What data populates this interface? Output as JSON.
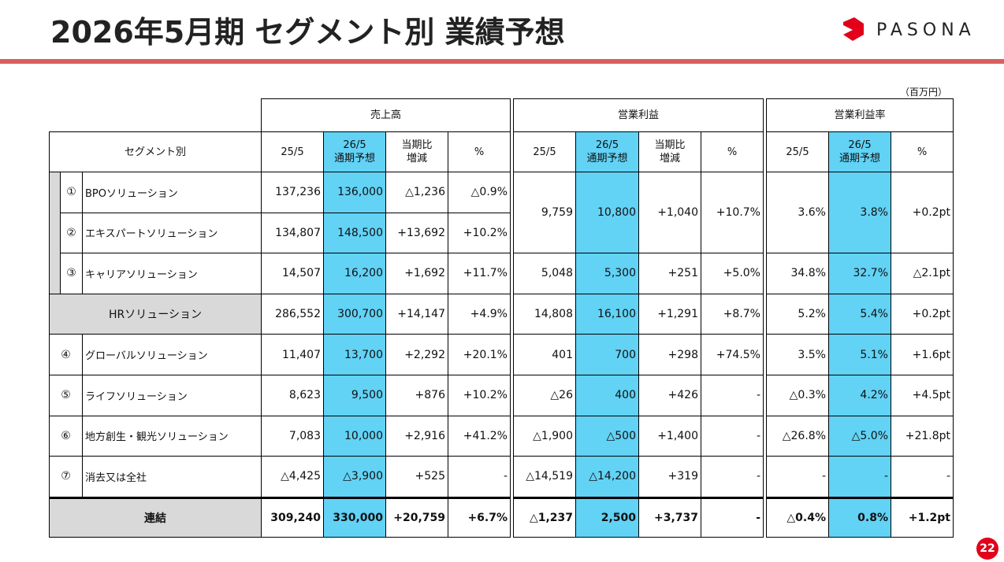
{
  "header": {
    "title": "2026年5月期 セグメント別 業績予想",
    "logo": "PASONA",
    "unit": "（百万円）",
    "page": "22"
  },
  "table": {
    "segment_header": "セグメント別",
    "groups": [
      {
        "title": "売上高",
        "columns": [
          [
            "25/5"
          ],
          [
            "26/5",
            "通期予想"
          ],
          [
            "当期比",
            "増減"
          ],
          [
            "%"
          ]
        ]
      },
      {
        "title": "営業利益",
        "columns": [
          [
            "25/5"
          ],
          [
            "26/5",
            "通期予想"
          ],
          [
            "当期比",
            "増減"
          ],
          [
            "%"
          ]
        ]
      },
      {
        "title": "営業利益率",
        "columns": [
          [
            "25/5"
          ],
          [
            "26/5",
            "通期予想"
          ],
          [
            "%"
          ]
        ]
      }
    ],
    "body": [
      {
        "name": "HRソリューション",
        "values": [
          [
            "286,552",
            "300,700",
            "+14,147",
            "+4.9%"
          ],
          [
            "14,808",
            "16,100",
            "+1,291",
            "+8.7%"
          ],
          [
            "5.2%",
            "5.4%",
            "+0.2pt"
          ]
        ],
        "children": [
          {
            "num": "①",
            "name": "BPOソリューション",
            "values": [
              [
                "137,236",
                "136,000",
                "△1,236",
                "△0.9%"
              ],
              [
                "9,759",
                "10,800",
                "+1,040",
                "+10.7%"
              ],
              [
                "3.6%",
                "3.8%",
                "+0.2pt"
              ]
            ]
          },
          {
            "num": "②",
            "name": "エキスパートソリューション",
            "values": [
              [
                "134,807",
                "148,500",
                "+13,692",
                "+10.2%"
              ]
            ]
          },
          {
            "num": "③",
            "name": "キャリアソリューション",
            "values": [
              [
                "14,507",
                "16,200",
                "+1,692",
                "+11.7%"
              ],
              [
                "5,048",
                "5,300",
                "+251",
                "+5.0%"
              ],
              [
                "34.8%",
                "32.7%",
                "△2.1pt"
              ]
            ]
          }
        ]
      },
      {
        "num": "④",
        "name": "グローバルソリューション",
        "values": [
          [
            "11,407",
            "13,700",
            "+2,292",
            "+20.1%"
          ],
          [
            "401",
            "700",
            "+298",
            "+74.5%"
          ],
          [
            "3.5%",
            "5.1%",
            "+1.6pt"
          ]
        ]
      },
      {
        "num": "⑤",
        "name": "ライフソリューション",
        "values": [
          [
            "8,623",
            "9,500",
            "+876",
            "+10.2%"
          ],
          [
            "△26",
            "400",
            "+426",
            "-"
          ],
          [
            "△0.3%",
            "4.2%",
            "+4.5pt"
          ]
        ]
      },
      {
        "num": "⑥",
        "name": "地方創生・観光ソリューション",
        "values": [
          [
            "7,083",
            "10,000",
            "+2,916",
            "+41.2%"
          ],
          [
            "△1,900",
            "△500",
            "+1,400",
            "-"
          ],
          [
            "△26.8%",
            "△5.0%",
            "+21.8pt"
          ]
        ]
      },
      {
        "num": "⑦",
        "name": "消去又は全社",
        "values": [
          [
            "△4,425",
            "△3,900",
            "+525",
            "-"
          ],
          [
            "△14,519",
            "△14,200",
            "+319",
            "-"
          ],
          [
            "-",
            "-",
            "-"
          ]
        ]
      }
    ],
    "total": {
      "name": "連結",
      "values": [
        [
          "309,240",
          "330,000",
          "+20,759",
          "+6.7%"
        ],
        [
          "△1,237",
          "2,500",
          "+3,737",
          "-"
        ],
        [
          "△0.4%",
          "0.8%",
          "+1.2pt"
        ]
      ]
    }
  }
}
